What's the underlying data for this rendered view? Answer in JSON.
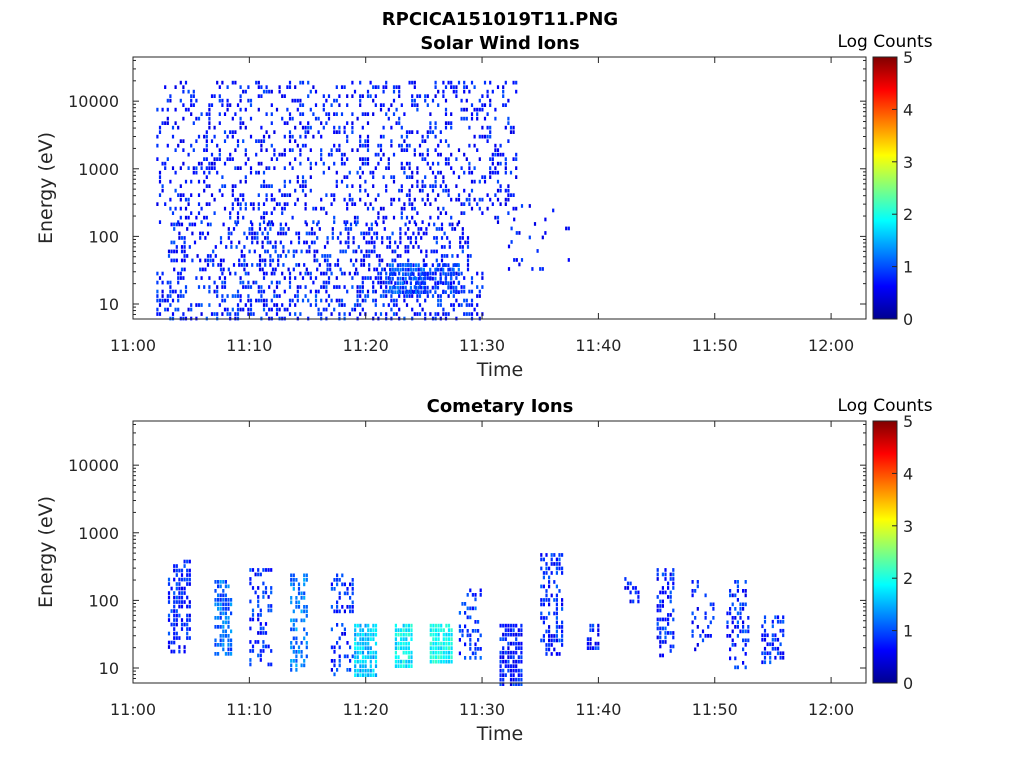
{
  "figure": {
    "title": "RPCICA151019T11.PNG"
  },
  "chart_data": [
    {
      "type": "heatmap",
      "title": "Solar Wind Ions",
      "xlabel": "Time",
      "ylabel": "Energy (eV)",
      "yscale": "log",
      "ylim": [
        6,
        45000
      ],
      "xlim": [
        "11:00",
        "12:03"
      ],
      "x_ticks": [
        "11:00",
        "11:10",
        "11:20",
        "11:30",
        "11:40",
        "11:50",
        "12:00"
      ],
      "y_ticks": [
        "10",
        "100",
        "1000",
        "10000"
      ],
      "colorbar": {
        "label": "Log Counts",
        "range": [
          0,
          5
        ],
        "ticks": [
          "0",
          "1",
          "2",
          "3",
          "4",
          "5"
        ]
      },
      "grid": false,
      "clusters": [
        {
          "t_start": "11:02",
          "t_end": "11:33",
          "e_min": 150,
          "e_max": 20000,
          "density": 0.22,
          "level": 0.25
        },
        {
          "t_start": "11:03",
          "t_end": "11:29",
          "e_min": 30,
          "e_max": 160,
          "density": 0.3,
          "level": 0.3
        },
        {
          "t_start": "11:02",
          "t_end": "11:30",
          "e_min": 6,
          "e_max": 30,
          "density": 0.35,
          "level": 0.35
        },
        {
          "t_start": "11:22",
          "t_end": "11:25",
          "e_min": 15,
          "e_max": 40,
          "density": 0.75,
          "level": 0.6
        },
        {
          "t_start": "11:25",
          "t_end": "11:28",
          "e_min": 15,
          "e_max": 40,
          "density": 0.65,
          "level": 0.5
        },
        {
          "t_start": "11:32",
          "t_end": "11:38",
          "e_min": 30,
          "e_max": 300,
          "density": 0.06,
          "level": 0.2
        }
      ]
    },
    {
      "type": "heatmap",
      "title": "Cometary Ions",
      "xlabel": "Time",
      "ylabel": "Energy (eV)",
      "yscale": "log",
      "ylim": [
        6,
        45000
      ],
      "xlim": [
        "11:00",
        "12:03"
      ],
      "x_ticks": [
        "11:00",
        "11:10",
        "11:20",
        "11:30",
        "11:40",
        "11:50",
        "12:00"
      ],
      "y_ticks": [
        "10",
        "100",
        "1000",
        "10000"
      ],
      "colorbar": {
        "label": "Log Counts",
        "range": [
          0,
          5
        ],
        "ticks": [
          "0",
          "1",
          "2",
          "3",
          "4",
          "5"
        ]
      },
      "grid": false,
      "clusters": [
        {
          "t_start": "11:03",
          "t_end": "11:05",
          "e_min": 18,
          "e_max": 400,
          "density": 0.45,
          "level": 0.35
        },
        {
          "t_start": "11:07",
          "t_end": "11:08.5",
          "e_min": 15,
          "e_max": 200,
          "density": 0.65,
          "level": 0.8
        },
        {
          "t_start": "11:10",
          "t_end": "11:12",
          "e_min": 12,
          "e_max": 300,
          "density": 0.35,
          "level": 0.4
        },
        {
          "t_start": "11:13.5",
          "t_end": "11:15",
          "e_min": 10,
          "e_max": 250,
          "density": 0.4,
          "level": 0.9
        },
        {
          "t_start": "11:17",
          "t_end": "11:19",
          "e_min": 8,
          "e_max": 250,
          "density": 0.3,
          "level": 0.4
        },
        {
          "t_start": "11:19",
          "t_end": "11:21",
          "e_min": 8,
          "e_max": 45,
          "density": 0.8,
          "level": 1.4
        },
        {
          "t_start": "11:22.5",
          "t_end": "11:24",
          "e_min": 10,
          "e_max": 45,
          "density": 0.85,
          "level": 1.7
        },
        {
          "t_start": "11:25.5",
          "t_end": "11:27.5",
          "e_min": 12,
          "e_max": 45,
          "density": 0.9,
          "level": 1.8
        },
        {
          "t_start": "11:28",
          "t_end": "11:30",
          "e_min": 15,
          "e_max": 150,
          "density": 0.35,
          "level": 0.5
        },
        {
          "t_start": "11:31.5",
          "t_end": "11:33.5",
          "e_min": 6,
          "e_max": 45,
          "density": 0.75,
          "level": 0.3
        },
        {
          "t_start": "11:35",
          "t_end": "11:37",
          "e_min": 15,
          "e_max": 500,
          "density": 0.45,
          "level": 0.4
        },
        {
          "t_start": "11:39",
          "t_end": "11:40",
          "e_min": 20,
          "e_max": 45,
          "density": 0.6,
          "level": 0.3
        },
        {
          "t_start": "11:42",
          "t_end": "11:43.5",
          "e_min": 100,
          "e_max": 300,
          "density": 0.35,
          "level": 0.3
        },
        {
          "t_start": "11:45",
          "t_end": "11:46.5",
          "e_min": 15,
          "e_max": 300,
          "density": 0.45,
          "level": 0.35
        },
        {
          "t_start": "11:48",
          "t_end": "11:50",
          "e_min": 20,
          "e_max": 200,
          "density": 0.25,
          "level": 0.3
        },
        {
          "t_start": "11:51",
          "t_end": "11:53",
          "e_min": 10,
          "e_max": 200,
          "density": 0.4,
          "level": 0.4
        },
        {
          "t_start": "11:54",
          "t_end": "11:56",
          "e_min": 12,
          "e_max": 60,
          "density": 0.45,
          "level": 0.4
        }
      ]
    }
  ]
}
